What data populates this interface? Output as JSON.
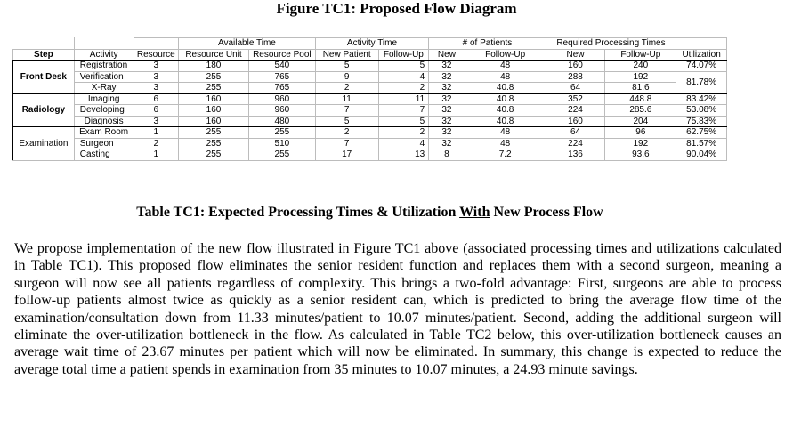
{
  "figure_title": "Figure TC1: Proposed Flow Diagram",
  "table": {
    "group_headers": {
      "available_time": "Available Time",
      "activity_time": "Activity Time",
      "num_patients": "# of Patients",
      "required_times": "Required Processing Times"
    },
    "col_headers": [
      "Step",
      "Activity",
      "Resource",
      "Resource Unit",
      "Resource Pool",
      "New Patient",
      "Follow-Up",
      "New",
      "Follow-Up",
      "New",
      "Follow-Up",
      "Utilization"
    ],
    "steps": {
      "front_desk": "Front Desk",
      "radiology": "Radiology",
      "examination": "Examination"
    },
    "rows": [
      {
        "activity": "Registration",
        "resource": "3",
        "unit": "180",
        "pool": "540",
        "act_new": "5",
        "act_fu": "5",
        "pat_new": "32",
        "pat_fu": "48",
        "req_new": "160",
        "req_fu": "240",
        "util": "74.07%"
      },
      {
        "activity": "Verification",
        "resource": "3",
        "unit": "255",
        "pool": "765",
        "act_new": "9",
        "act_fu": "4",
        "pat_new": "32",
        "pat_fu": "48",
        "req_new": "288",
        "req_fu": "192",
        "util": "81.78%"
      },
      {
        "activity": "X-Ray",
        "resource": "3",
        "unit": "255",
        "pool": "765",
        "act_new": "2",
        "act_fu": "2",
        "pat_new": "32",
        "pat_fu": "40.8",
        "req_new": "64",
        "req_fu": "81.6",
        "util": ""
      },
      {
        "activity": "Imaging",
        "resource": "6",
        "unit": "160",
        "pool": "960",
        "act_new": "11",
        "act_fu": "11",
        "pat_new": "32",
        "pat_fu": "40.8",
        "req_new": "352",
        "req_fu": "448.8",
        "util": "83.42%"
      },
      {
        "activity": "Developing",
        "resource": "6",
        "unit": "160",
        "pool": "960",
        "act_new": "7",
        "act_fu": "7",
        "pat_new": "32",
        "pat_fu": "40.8",
        "req_new": "224",
        "req_fu": "285.6",
        "util": "53.08%"
      },
      {
        "activity": "Diagnosis",
        "resource": "3",
        "unit": "160",
        "pool": "480",
        "act_new": "5",
        "act_fu": "5",
        "pat_new": "32",
        "pat_fu": "40.8",
        "req_new": "160",
        "req_fu": "204",
        "util": "75.83%"
      },
      {
        "activity": "Exam Room",
        "resource": "1",
        "unit": "255",
        "pool": "255",
        "act_new": "2",
        "act_fu": "2",
        "pat_new": "32",
        "pat_fu": "48",
        "req_new": "64",
        "req_fu": "96",
        "util": "62.75%"
      },
      {
        "activity": "Surgeon",
        "resource": "2",
        "unit": "255",
        "pool": "510",
        "act_new": "7",
        "act_fu": "4",
        "pat_new": "32",
        "pat_fu": "48",
        "req_new": "224",
        "req_fu": "192",
        "util": "81.57%"
      },
      {
        "activity": "Casting",
        "resource": "1",
        "unit": "255",
        "pool": "255",
        "act_new": "17",
        "act_fu": "13",
        "pat_new": "8",
        "pat_fu": "7.2",
        "req_new": "136",
        "req_fu": "93.6",
        "util": "90.04%"
      }
    ]
  },
  "table_caption": {
    "part1": "Table TC1: Expected Processing Times & Utilization ",
    "part2": "With",
    "part3": " New Process Flow"
  },
  "paragraph": {
    "part1": "We propose implementation of the new flow illustrated in Figure TC1 above (associated processing times and utilizations calculated in Table TC1).  This proposed flow eliminates the senior resident function and replaces them with a second surgeon, meaning a surgeon will now see all patients regardless of complexity.  This brings a two-fold advantage: First, surgeons are able to process follow-up patients almost twice as quickly as a senior resident can, which is predicted to bring the average flow time of the examination/consultation down from 11.33 minutes/patient to 10.07 minutes/patient.  Second, adding the additional surgeon will eliminate the over-utilization bottleneck in the flow.  As calculated in Table TC2 below, this over-utilization bottleneck causes an average wait time of 23.67 minutes per patient which will now be eliminated.  In summary, this change is expected to reduce the average total time a patient spends in examination from 35 minutes to 10.07 minutes, a ",
    "part2": "24.93 minute",
    "part3": " savings."
  }
}
